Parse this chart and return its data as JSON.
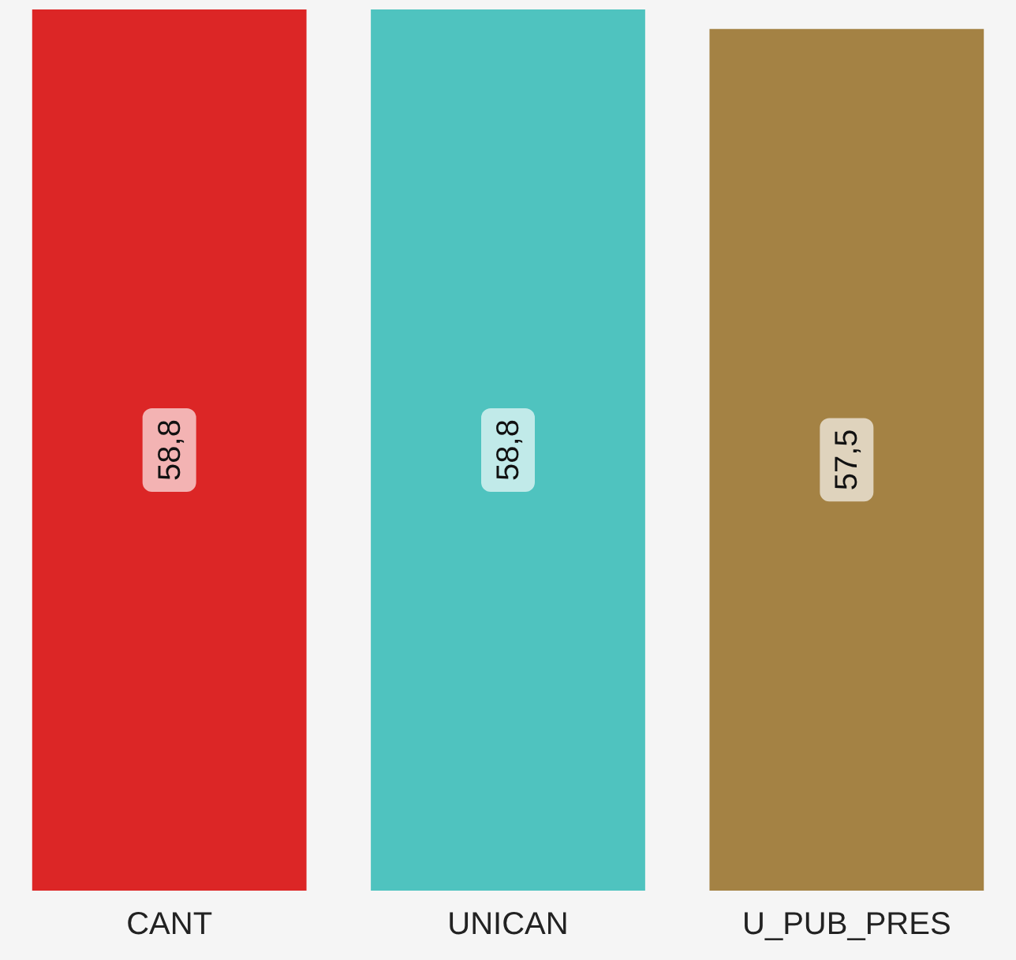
{
  "chart_data": {
    "type": "bar",
    "categories": [
      "CANT",
      "UNICAN",
      "U_PUB_PRES"
    ],
    "values": [
      58.8,
      58.8,
      57.5
    ],
    "colors": [
      "#dc2626",
      "#4fc3bf",
      "#a48244"
    ],
    "value_labels": [
      "58,8",
      "58,8",
      "57,5"
    ],
    "grid": false,
    "legend": false
  }
}
